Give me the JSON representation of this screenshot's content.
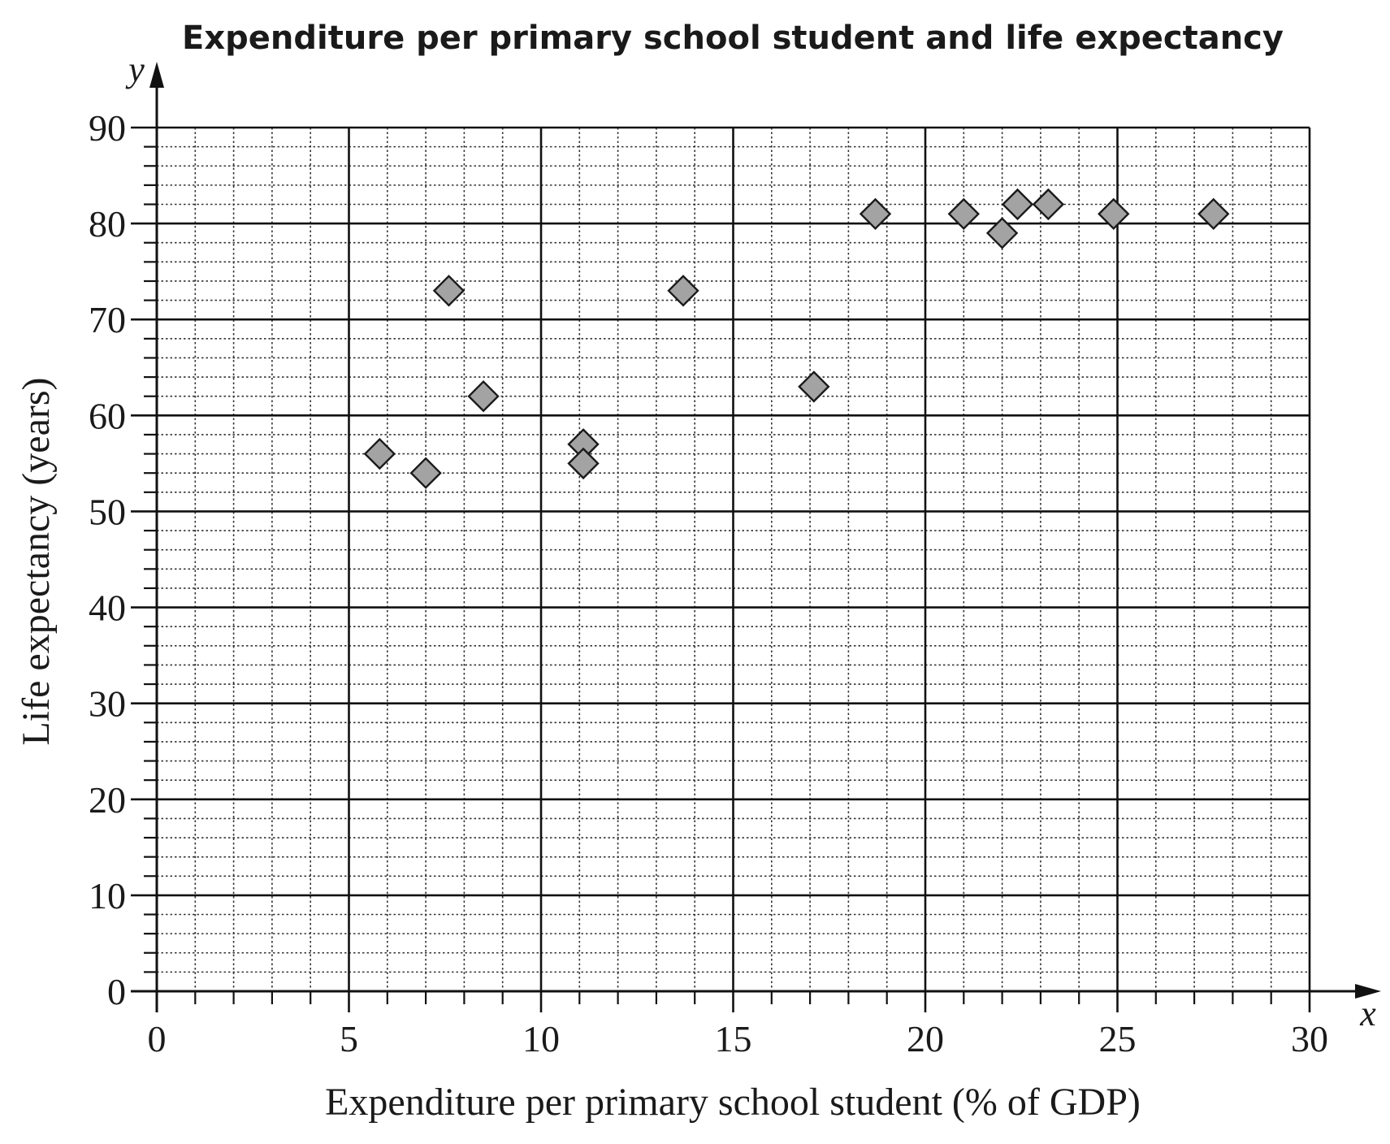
{
  "chart_data": {
    "type": "scatter",
    "title": "Expenditure per primary school student and life expectancy",
    "xlabel": "Expenditure per primary school student (% of GDP)",
    "ylabel": "Life expectancy (years)",
    "x_axis_letter": "x",
    "y_axis_letter": "y",
    "xlim": [
      0,
      30
    ],
    "ylim": [
      0,
      90
    ],
    "x_ticks": [
      0,
      5,
      10,
      15,
      20,
      25,
      30
    ],
    "y_ticks": [
      0,
      10,
      20,
      30,
      40,
      50,
      60,
      70,
      80,
      90
    ],
    "grid": "major every 5 (x) and 10 (y); dotted minor every 1 (x) and 2 (y)",
    "legend": "none",
    "marker": "diamond",
    "marker_color": "#a3a3a3",
    "series": [
      {
        "points": [
          {
            "x": 5.8,
            "y": 56
          },
          {
            "x": 7.0,
            "y": 54
          },
          {
            "x": 7.6,
            "y": 73
          },
          {
            "x": 8.5,
            "y": 62
          },
          {
            "x": 11.1,
            "y": 57
          },
          {
            "x": 11.1,
            "y": 55
          },
          {
            "x": 13.7,
            "y": 73
          },
          {
            "x": 17.1,
            "y": 63
          },
          {
            "x": 18.7,
            "y": 81
          },
          {
            "x": 21.0,
            "y": 81
          },
          {
            "x": 22.0,
            "y": 79
          },
          {
            "x": 22.4,
            "y": 82
          },
          {
            "x": 23.2,
            "y": 82
          },
          {
            "x": 24.9,
            "y": 81
          },
          {
            "x": 27.5,
            "y": 81
          }
        ]
      }
    ]
  }
}
